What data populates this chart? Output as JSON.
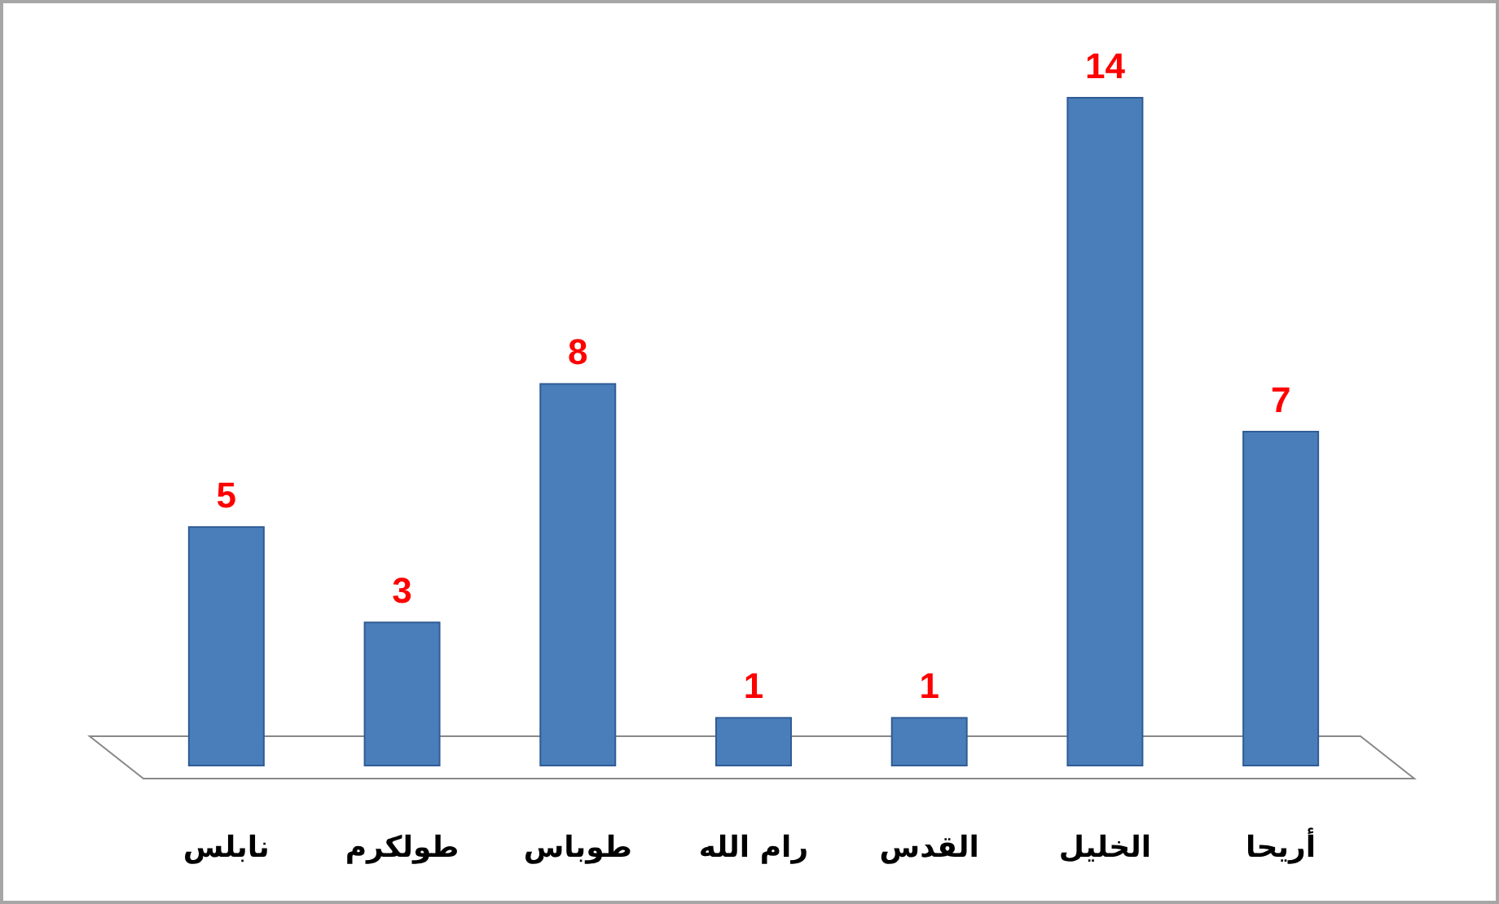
{
  "chart_data": {
    "type": "bar",
    "categories": [
      "نابلس",
      "طولكرم",
      "طوباس",
      "رام الله",
      "القدس",
      "الخليل",
      "أريحا"
    ],
    "values": [
      5,
      3,
      8,
      1,
      1,
      14,
      7
    ],
    "color": "#4a7ebb",
    "tick_labels": "x",
    "data_labels": true
  }
}
